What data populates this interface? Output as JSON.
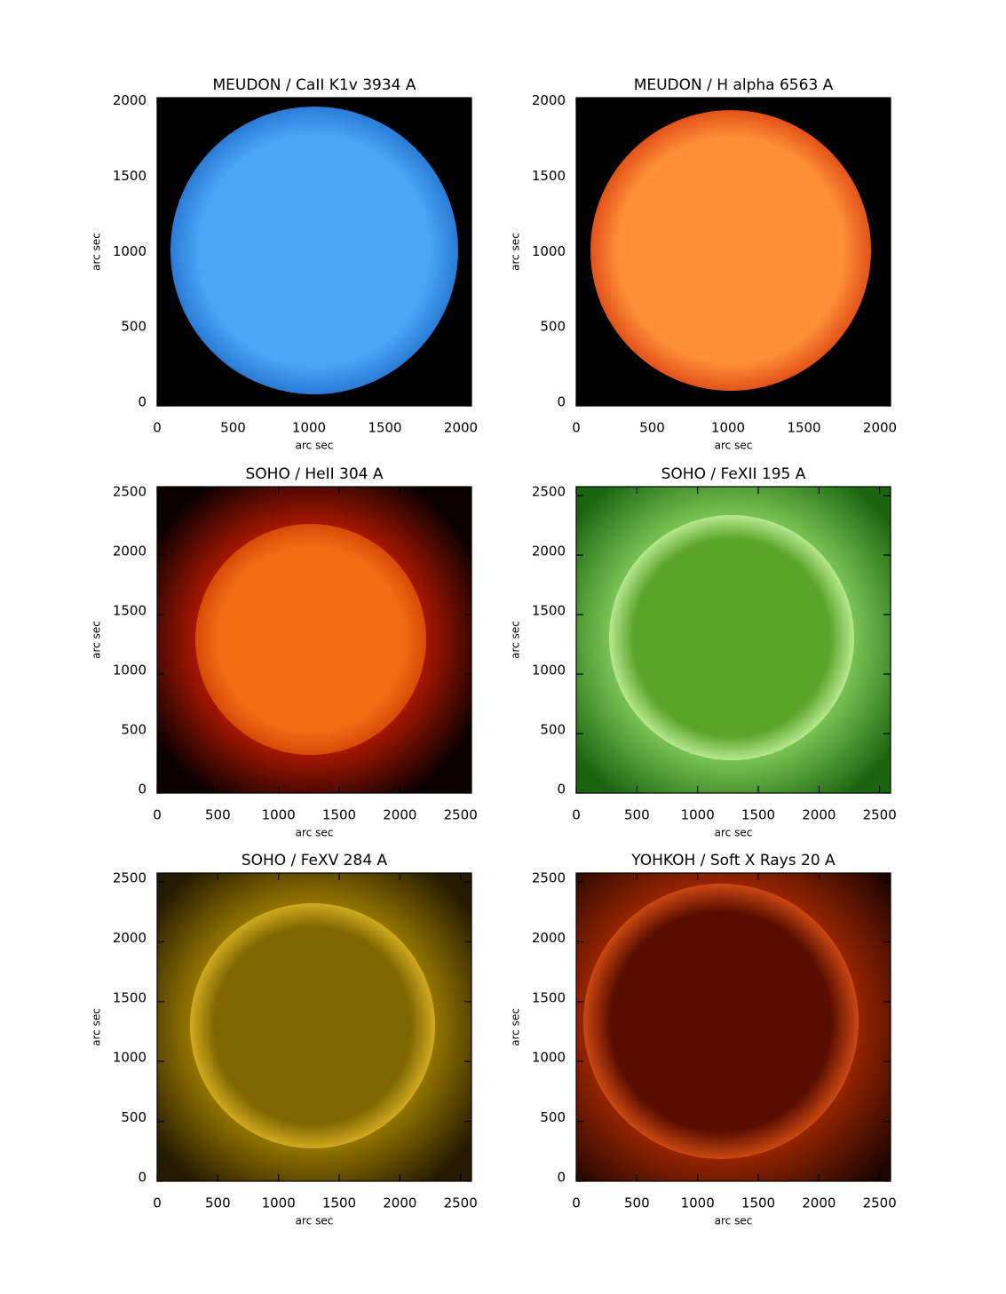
{
  "chart_data": [
    {
      "type": "image",
      "title": "MEUDON / CaII K1v 3934 A",
      "xlabel": "arc sec",
      "ylabel": "arc sec",
      "xlim": [
        0,
        2070
      ],
      "ylim": [
        0,
        2045
      ],
      "xticks": [
        0,
        500,
        1000,
        1500,
        2000
      ],
      "yticks": [
        0,
        500,
        1000,
        1500,
        2000
      ],
      "colors": {
        "background": "#000000",
        "disk": "#4aa6f4",
        "limb": "#2b7bd6"
      }
    },
    {
      "type": "image",
      "title": "MEUDON / H alpha 6563 A",
      "xlabel": "arc sec",
      "ylabel": "arc sec",
      "xlim": [
        0,
        2070
      ],
      "ylim": [
        0,
        2045
      ],
      "xticks": [
        0,
        500,
        1000,
        1500,
        2000
      ],
      "yticks": [
        0,
        500,
        1000,
        1500,
        2000
      ],
      "colors": {
        "background": "#000000",
        "disk": "#ff9038",
        "limb": "#e2521a"
      }
    },
    {
      "type": "image",
      "title": "SOHO / HeII 304 A",
      "xlabel": "arc sec",
      "ylabel": "arc sec",
      "xlim": [
        0,
        2590
      ],
      "ylim": [
        0,
        2575
      ],
      "xticks": [
        0,
        500,
        1000,
        1500,
        2000,
        2500
      ],
      "yticks": [
        0,
        500,
        1000,
        1500,
        2000,
        2500
      ],
      "colors": {
        "background": "#0a0000",
        "disk": "#f26c14",
        "limb": "#d84a08",
        "corona": "#b01800"
      }
    },
    {
      "type": "image",
      "title": "SOHO / FeXII 195 A",
      "xlabel": "arc sec",
      "ylabel": "arc sec",
      "xlim": [
        0,
        2590
      ],
      "ylim": [
        0,
        2575
      ],
      "xticks": [
        0,
        500,
        1000,
        1500,
        2000,
        2500
      ],
      "yticks": [
        0,
        500,
        1000,
        1500,
        2000,
        2500
      ],
      "colors": {
        "background": "#1a6410",
        "disk": "#5aa42a",
        "limb": "#b8e890",
        "corona": "#80c858"
      }
    },
    {
      "type": "image",
      "title": "SOHO / FeXV 284 A",
      "xlabel": "arc sec",
      "ylabel": "arc sec",
      "xlim": [
        0,
        2590
      ],
      "ylim": [
        0,
        2575
      ],
      "xticks": [
        0,
        500,
        1000,
        1500,
        2000,
        2500
      ],
      "yticks": [
        0,
        500,
        1000,
        1500,
        2000,
        2500
      ],
      "colors": {
        "background": "#241a00",
        "disk": "#7e6600",
        "limb": "#d2aa20",
        "corona": "#9a7a00"
      }
    },
    {
      "type": "image",
      "title": "YOHKOH / Soft X Rays 20 A",
      "xlabel": "arc sec",
      "ylabel": "arc sec",
      "xlim": [
        0,
        2590
      ],
      "ylim": [
        0,
        2575
      ],
      "xticks": [
        0,
        500,
        1000,
        1500,
        2000,
        2500
      ],
      "yticks": [
        0,
        500,
        1000,
        1500,
        2000,
        2500
      ],
      "colors": {
        "background": "#1c0400",
        "disk": "#5a0e00",
        "limb": "#cc4812",
        "corona": "#9c2600"
      }
    }
  ]
}
